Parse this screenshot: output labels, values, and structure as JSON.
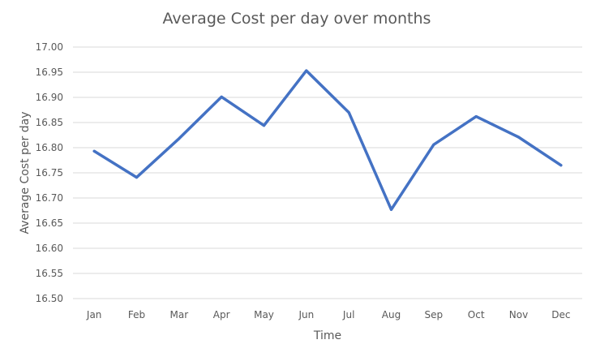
{
  "chart_data": {
    "type": "line",
    "title": "Average Cost per day over months",
    "xlabel": "Time",
    "ylabel": "Average Cost per day",
    "categories": [
      "Jan",
      "Feb",
      "Mar",
      "Apr",
      "May",
      "Jun",
      "Jul",
      "Aug",
      "Sep",
      "Oct",
      "Nov",
      "Dec"
    ],
    "series": [
      {
        "values": [
          16.793,
          16.741,
          16.818,
          16.901,
          16.844,
          16.953,
          16.87,
          16.677,
          16.806,
          16.862,
          16.821,
          16.765
        ]
      }
    ],
    "ylim": [
      16.5,
      17.0
    ],
    "yticks": [
      "16.50",
      "16.55",
      "16.60",
      "16.65",
      "16.70",
      "16.75",
      "16.80",
      "16.85",
      "16.90",
      "16.95",
      "17.00"
    ],
    "grid": true,
    "legend": "none",
    "colors": {
      "series": "#4472c4",
      "grid": "#d9d9d9",
      "text": "#595959"
    }
  }
}
